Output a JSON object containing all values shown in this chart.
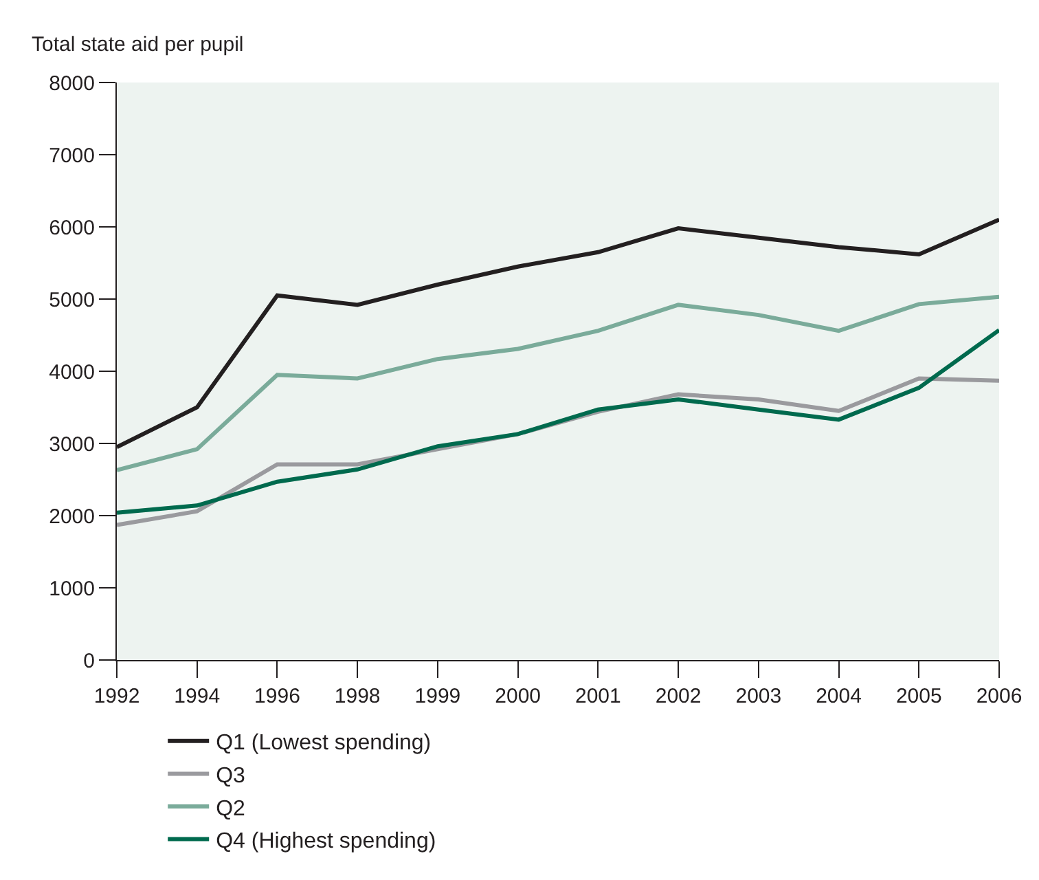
{
  "chart_data": {
    "type": "line",
    "ylabel": "Total state aid per pupil",
    "categories": [
      "1992",
      "1994",
      "1996",
      "1998",
      "1999",
      "2000",
      "2001",
      "2002",
      "2003",
      "2004",
      "2005",
      "2006"
    ],
    "series": [
      {
        "name": "Q1 (Lowest spending)",
        "color": "#231f20",
        "values": [
          2950,
          3500,
          5050,
          4920,
          5200,
          5450,
          5650,
          5980,
          5850,
          5720,
          5620,
          6100
        ]
      },
      {
        "name": "Q2",
        "color": "#7aab9a",
        "values": [
          2630,
          2920,
          3950,
          3900,
          4170,
          4310,
          4560,
          4920,
          4780,
          4560,
          4930,
          5030
        ]
      },
      {
        "name": "Q3",
        "color": "#9a9a9e",
        "values": [
          1870,
          2060,
          2710,
          2710,
          2920,
          3130,
          3440,
          3680,
          3610,
          3450,
          3900,
          3870
        ]
      },
      {
        "name": "Q4 (Highest spending)",
        "color": "#006a4e",
        "values": [
          2040,
          2140,
          2470,
          2640,
          2960,
          3130,
          3470,
          3610,
          3470,
          3330,
          3770,
          4570
        ]
      }
    ],
    "ylim": [
      0,
      8000
    ],
    "yticks": [
      0,
      1000,
      2000,
      3000,
      4000,
      5000,
      6000,
      7000,
      8000
    ],
    "grid": false,
    "legend": "bottom",
    "marker": "none",
    "line_style": "solid"
  }
}
